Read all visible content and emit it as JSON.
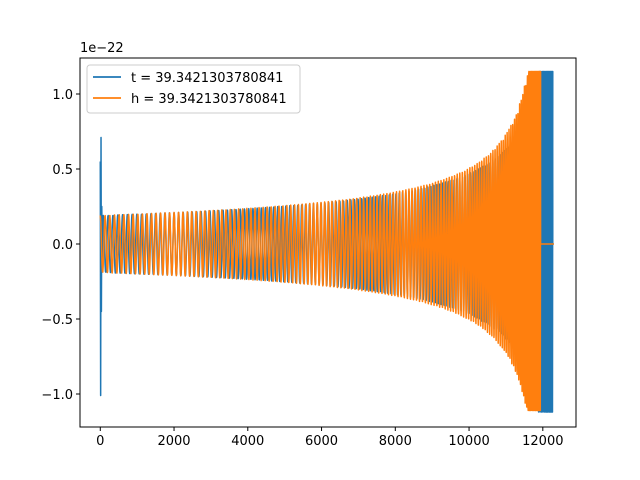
{
  "chart_data": {
    "type": "line",
    "title": "",
    "xlabel": "",
    "ylabel": "",
    "offset_text": "1e−22",
    "xlim": [
      -550,
      12900
    ],
    "ylim": [
      -1.22,
      1.24
    ],
    "xticks": [
      0,
      2000,
      4000,
      6000,
      8000,
      10000,
      12000
    ],
    "xtick_labels": [
      "0",
      "2000",
      "4000",
      "6000",
      "8000",
      "10000",
      "12000"
    ],
    "yticks": [
      -1.0,
      -0.5,
      0.0,
      0.5,
      1.0
    ],
    "ytick_labels": [
      "−1.0",
      "−0.5",
      "0.0",
      "0.5",
      "1.0"
    ],
    "grid": false,
    "legend_position": "top-left",
    "series": [
      {
        "name": "t = 39.3421303780841",
        "color": "#1f77b4",
        "initial_transient": {
          "x": [
            0,
            10,
            20,
            30,
            40,
            60,
            80
          ],
          "y": [
            0.55,
            -1.01,
            0.71,
            -0.45,
            0.25,
            -0.15,
            0.12
          ]
        },
        "start_x": 80,
        "merger_x": 12270,
        "end_x": 12300,
        "base_amplitude": 0.19,
        "peak_amplitude": 1.15,
        "min_amplitude": -1.12,
        "cycles": 140
      },
      {
        "name": "h = 39.3421303780841",
        "color": "#ff7f0e",
        "start_x": 0,
        "merger_x": 11940,
        "end_x": 12300,
        "base_amplitude": 0.19,
        "peak_amplitude": 1.15,
        "min_amplitude": -1.11,
        "cycles": 140
      }
    ]
  }
}
